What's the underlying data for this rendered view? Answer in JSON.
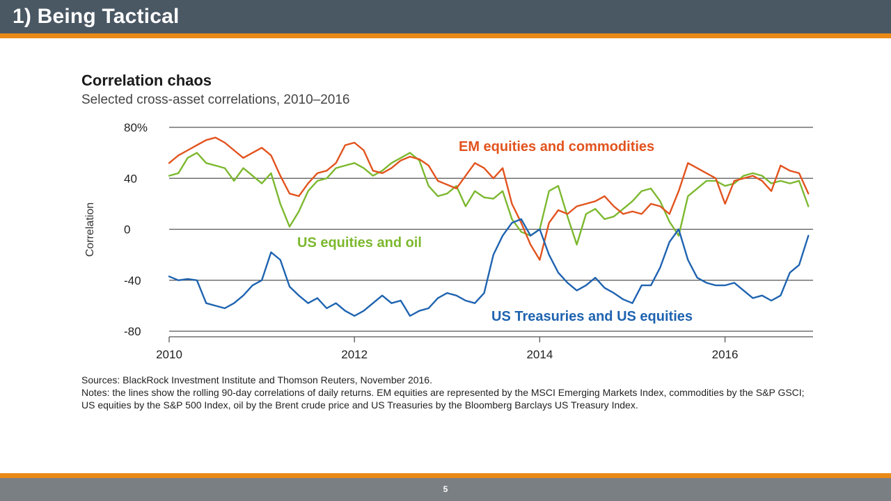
{
  "slide": {
    "title": "1) Being Tactical",
    "page_number": "5"
  },
  "colors": {
    "header_bg": "#4a5864",
    "accent": "#e98a17",
    "footer_bg": "#7a7f84"
  },
  "chart_data": {
    "type": "line",
    "title": "Correlation chaos",
    "subtitle": "Selected cross-asset correlations, 2010–2016",
    "ylabel": "Correlation",
    "xlabel": "",
    "ylim": [
      -80,
      80
    ],
    "xlim": [
      2010,
      2016.95
    ],
    "yticks": [
      {
        "value": 80,
        "label": "80%"
      },
      {
        "value": 40,
        "label": "40"
      },
      {
        "value": 0,
        "label": "0"
      },
      {
        "value": -40,
        "label": "-40"
      },
      {
        "value": -80,
        "label": "-80"
      }
    ],
    "xticks": [
      {
        "value": 2010,
        "label": "2010"
      },
      {
        "value": 2012,
        "label": "2012"
      },
      {
        "value": 2014,
        "label": "2014"
      },
      {
        "value": 2016,
        "label": "2016"
      }
    ],
    "grid": "horizontal",
    "legend": "inline labels",
    "series": [
      {
        "name": "EM equities and commodities",
        "color": "#e2531e",
        "points": [
          [
            2010.0,
            52
          ],
          [
            2010.1,
            58
          ],
          [
            2010.2,
            62
          ],
          [
            2010.3,
            66
          ],
          [
            2010.4,
            70
          ],
          [
            2010.5,
            72
          ],
          [
            2010.6,
            68
          ],
          [
            2010.7,
            62
          ],
          [
            2010.8,
            56
          ],
          [
            2010.9,
            60
          ],
          [
            2011.0,
            64
          ],
          [
            2011.1,
            58
          ],
          [
            2011.2,
            42
          ],
          [
            2011.3,
            28
          ],
          [
            2011.4,
            26
          ],
          [
            2011.5,
            36
          ],
          [
            2011.6,
            44
          ],
          [
            2011.7,
            46
          ],
          [
            2011.8,
            52
          ],
          [
            2011.9,
            66
          ],
          [
            2012.0,
            68
          ],
          [
            2012.1,
            62
          ],
          [
            2012.2,
            46
          ],
          [
            2012.3,
            44
          ],
          [
            2012.4,
            48
          ],
          [
            2012.5,
            54
          ],
          [
            2012.6,
            57
          ],
          [
            2012.7,
            55
          ],
          [
            2012.8,
            50
          ],
          [
            2012.9,
            38
          ],
          [
            2013.0,
            35
          ],
          [
            2013.1,
            32
          ],
          [
            2013.2,
            42
          ],
          [
            2013.3,
            52
          ],
          [
            2013.4,
            48
          ],
          [
            2013.5,
            40
          ],
          [
            2013.6,
            48
          ],
          [
            2013.7,
            20
          ],
          [
            2013.8,
            5
          ],
          [
            2013.9,
            -12
          ],
          [
            2014.0,
            -24
          ],
          [
            2014.1,
            5
          ],
          [
            2014.2,
            15
          ],
          [
            2014.3,
            12
          ],
          [
            2014.4,
            18
          ],
          [
            2014.5,
            20
          ],
          [
            2014.6,
            22
          ],
          [
            2014.7,
            26
          ],
          [
            2014.8,
            18
          ],
          [
            2014.9,
            12
          ],
          [
            2015.0,
            14
          ],
          [
            2015.1,
            12
          ],
          [
            2015.2,
            20
          ],
          [
            2015.3,
            18
          ],
          [
            2015.4,
            12
          ],
          [
            2015.5,
            30
          ],
          [
            2015.6,
            52
          ],
          [
            2015.7,
            48
          ],
          [
            2015.8,
            44
          ],
          [
            2015.9,
            40
          ],
          [
            2016.0,
            20
          ],
          [
            2016.1,
            38
          ],
          [
            2016.2,
            40
          ],
          [
            2016.3,
            42
          ],
          [
            2016.4,
            38
          ],
          [
            2016.5,
            30
          ],
          [
            2016.6,
            50
          ],
          [
            2016.7,
            46
          ],
          [
            2016.8,
            44
          ],
          [
            2016.9,
            28
          ]
        ]
      },
      {
        "name": "US equities and oil",
        "color": "#7cb82f",
        "points": [
          [
            2010.0,
            42
          ],
          [
            2010.1,
            44
          ],
          [
            2010.2,
            56
          ],
          [
            2010.3,
            60
          ],
          [
            2010.4,
            52
          ],
          [
            2010.5,
            50
          ],
          [
            2010.6,
            48
          ],
          [
            2010.7,
            38
          ],
          [
            2010.8,
            48
          ],
          [
            2010.9,
            42
          ],
          [
            2011.0,
            36
          ],
          [
            2011.1,
            44
          ],
          [
            2011.2,
            20
          ],
          [
            2011.3,
            2
          ],
          [
            2011.4,
            14
          ],
          [
            2011.5,
            30
          ],
          [
            2011.6,
            38
          ],
          [
            2011.7,
            40
          ],
          [
            2011.8,
            48
          ],
          [
            2011.9,
            50
          ],
          [
            2012.0,
            52
          ],
          [
            2012.1,
            48
          ],
          [
            2012.2,
            42
          ],
          [
            2012.3,
            46
          ],
          [
            2012.4,
            52
          ],
          [
            2012.5,
            56
          ],
          [
            2012.6,
            60
          ],
          [
            2012.7,
            54
          ],
          [
            2012.8,
            34
          ],
          [
            2012.9,
            26
          ],
          [
            2013.0,
            28
          ],
          [
            2013.1,
            34
          ],
          [
            2013.2,
            18
          ],
          [
            2013.3,
            30
          ],
          [
            2013.4,
            25
          ],
          [
            2013.5,
            24
          ],
          [
            2013.6,
            30
          ],
          [
            2013.7,
            8
          ],
          [
            2013.8,
            -2
          ],
          [
            2013.9,
            -5
          ],
          [
            2014.0,
            0
          ],
          [
            2014.1,
            30
          ],
          [
            2014.2,
            34
          ],
          [
            2014.3,
            10
          ],
          [
            2014.4,
            -12
          ],
          [
            2014.5,
            12
          ],
          [
            2014.6,
            16
          ],
          [
            2014.7,
            8
          ],
          [
            2014.8,
            10
          ],
          [
            2014.9,
            16
          ],
          [
            2015.0,
            22
          ],
          [
            2015.1,
            30
          ],
          [
            2015.2,
            32
          ],
          [
            2015.3,
            22
          ],
          [
            2015.4,
            6
          ],
          [
            2015.5,
            -5
          ],
          [
            2015.6,
            26
          ],
          [
            2015.7,
            32
          ],
          [
            2015.8,
            38
          ],
          [
            2015.9,
            38
          ],
          [
            2016.0,
            34
          ],
          [
            2016.1,
            36
          ],
          [
            2016.2,
            42
          ],
          [
            2016.3,
            44
          ],
          [
            2016.4,
            42
          ],
          [
            2016.5,
            36
          ],
          [
            2016.6,
            38
          ],
          [
            2016.7,
            36
          ],
          [
            2016.8,
            38
          ],
          [
            2016.9,
            18
          ]
        ]
      },
      {
        "name": "US Treasuries and US equities",
        "color": "#1e63b0",
        "points": [
          [
            2010.0,
            -37
          ],
          [
            2010.1,
            -40
          ],
          [
            2010.2,
            -39
          ],
          [
            2010.3,
            -40
          ],
          [
            2010.4,
            -58
          ],
          [
            2010.5,
            -60
          ],
          [
            2010.6,
            -62
          ],
          [
            2010.7,
            -58
          ],
          [
            2010.8,
            -52
          ],
          [
            2010.9,
            -44
          ],
          [
            2011.0,
            -40
          ],
          [
            2011.1,
            -18
          ],
          [
            2011.2,
            -24
          ],
          [
            2011.3,
            -45
          ],
          [
            2011.4,
            -52
          ],
          [
            2011.5,
            -58
          ],
          [
            2011.6,
            -54
          ],
          [
            2011.7,
            -62
          ],
          [
            2011.8,
            -58
          ],
          [
            2011.9,
            -64
          ],
          [
            2012.0,
            -68
          ],
          [
            2012.1,
            -64
          ],
          [
            2012.2,
            -58
          ],
          [
            2012.3,
            -52
          ],
          [
            2012.4,
            -58
          ],
          [
            2012.5,
            -56
          ],
          [
            2012.6,
            -68
          ],
          [
            2012.7,
            -64
          ],
          [
            2012.8,
            -62
          ],
          [
            2012.9,
            -54
          ],
          [
            2013.0,
            -50
          ],
          [
            2013.1,
            -52
          ],
          [
            2013.2,
            -56
          ],
          [
            2013.3,
            -58
          ],
          [
            2013.4,
            -50
          ],
          [
            2013.5,
            -20
          ],
          [
            2013.6,
            -5
          ],
          [
            2013.7,
            5
          ],
          [
            2013.8,
            8
          ],
          [
            2013.9,
            -5
          ],
          [
            2014.0,
            0
          ],
          [
            2014.1,
            -20
          ],
          [
            2014.2,
            -34
          ],
          [
            2014.3,
            -42
          ],
          [
            2014.4,
            -48
          ],
          [
            2014.5,
            -44
          ],
          [
            2014.6,
            -38
          ],
          [
            2014.7,
            -46
          ],
          [
            2014.8,
            -50
          ],
          [
            2014.9,
            -55
          ],
          [
            2015.0,
            -58
          ],
          [
            2015.1,
            -44
          ],
          [
            2015.2,
            -44
          ],
          [
            2015.3,
            -30
          ],
          [
            2015.4,
            -10
          ],
          [
            2015.5,
            0
          ],
          [
            2015.6,
            -24
          ],
          [
            2015.7,
            -38
          ],
          [
            2015.8,
            -42
          ],
          [
            2015.9,
            -44
          ],
          [
            2016.0,
            -44
          ],
          [
            2016.1,
            -42
          ],
          [
            2016.2,
            -48
          ],
          [
            2016.3,
            -54
          ],
          [
            2016.4,
            -52
          ],
          [
            2016.5,
            -56
          ],
          [
            2016.6,
            -52
          ],
          [
            2016.7,
            -34
          ],
          [
            2016.8,
            -28
          ],
          [
            2016.9,
            -5
          ]
        ]
      }
    ],
    "labels": [
      {
        "text": "EM equities and commodities",
        "color": "#e2531e"
      },
      {
        "text": "US equities and oil",
        "color": "#7cb82f"
      },
      {
        "text": "US Treasuries and US equities",
        "color": "#1e63b0"
      }
    ]
  },
  "notes": {
    "sources": "Sources: BlackRock Investment Institute and Thomson Reuters, November 2016.",
    "text": "Notes: the lines show the rolling 90-day correlations of daily returns. EM equities are represented by the MSCI Emerging Markets Index, commodities by the S&P GSCI; US equities by the S&P 500 Index, oil by the Brent crude price and US Treasuries by the Bloomberg Barclays US Treasury Index."
  }
}
